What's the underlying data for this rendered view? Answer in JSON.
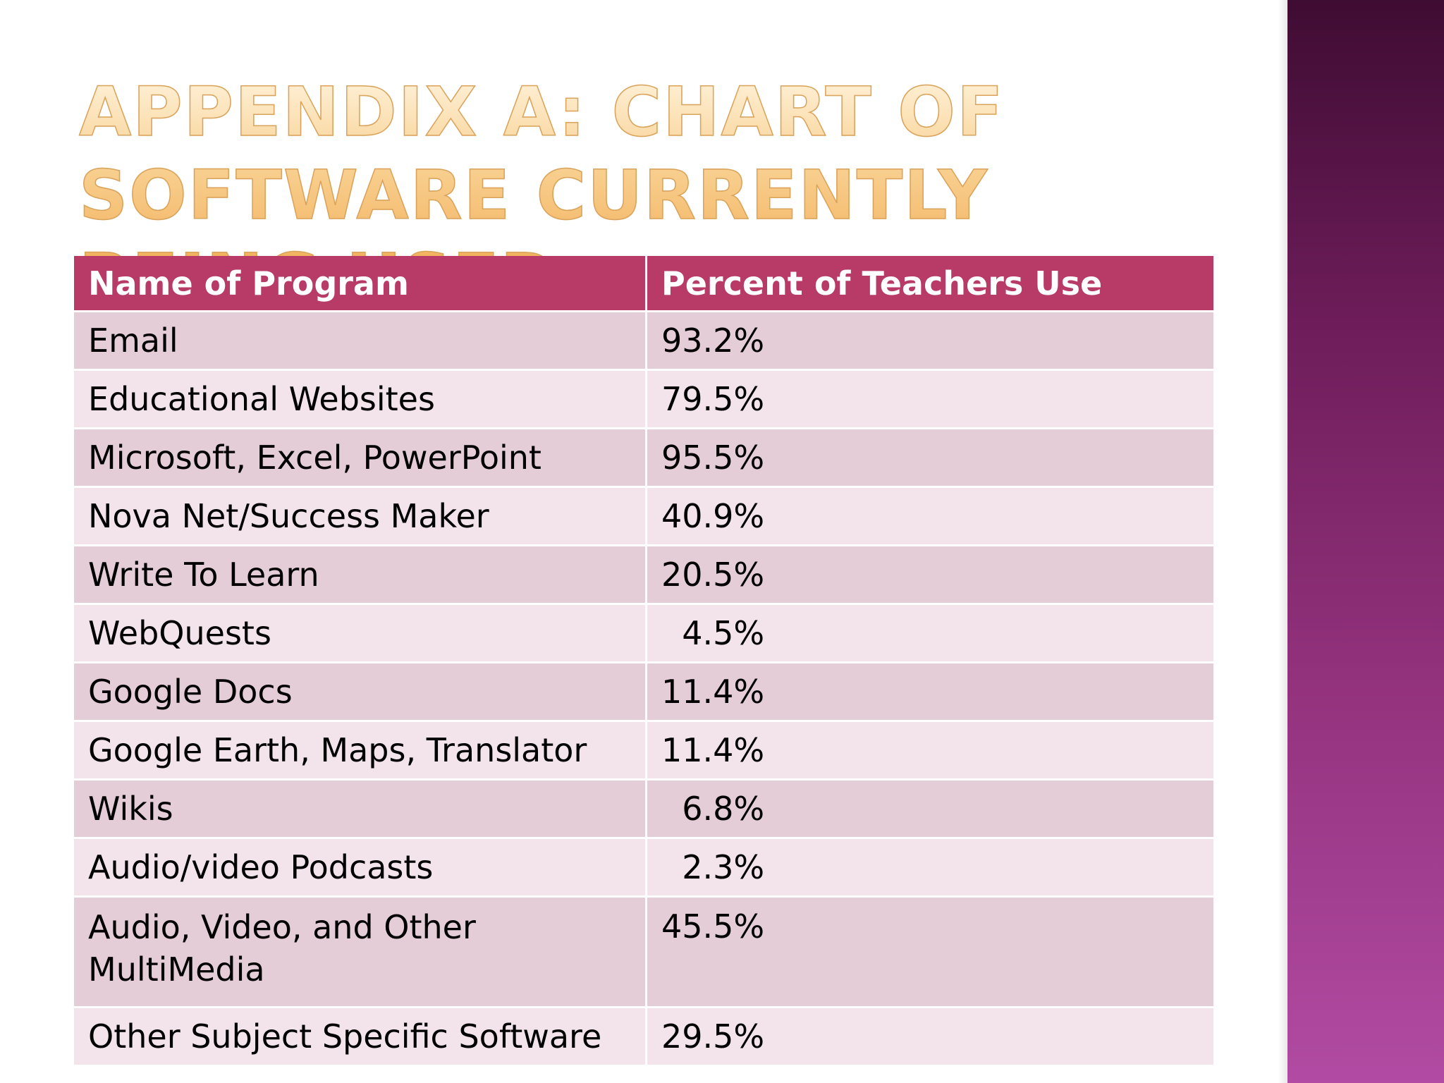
{
  "slide": {
    "title": "Appendix A: Chart of Software Currently Being Used"
  },
  "table": {
    "headers": [
      "Name of Program",
      "Percent of Teachers  Use"
    ],
    "rows": [
      {
        "program": "Email",
        "percent": "93.2%"
      },
      {
        "program": "Educational Websites",
        "percent": "79.5%"
      },
      {
        "program": "Microsoft, Excel, PowerPoint",
        "percent": "95.5%"
      },
      {
        "program": "Nova Net/Success Maker",
        "percent": "40.9%"
      },
      {
        "program": "Write To Learn",
        "percent": "20.5%"
      },
      {
        "program": "WebQuests",
        "percent": "  4.5%"
      },
      {
        "program": "Google Docs",
        "percent": "11.4%"
      },
      {
        "program": "Google Earth, Maps, Translator",
        "percent": "11.4%"
      },
      {
        "program": "Wikis",
        "percent": "  6.8%"
      },
      {
        "program": "Audio/video Podcasts",
        "percent": "  2.3%"
      },
      {
        "program": "Audio, Video, and Other MultiMedia",
        "percent": "45.5%"
      },
      {
        "program": "Other Subject Specific Software",
        "percent": "29.5%"
      }
    ]
  },
  "colors": {
    "header_bg": "#b73b66",
    "row_odd": "#e4cdd6",
    "row_even": "#f2e4ea",
    "title": "#f2ad58",
    "side_band_top": "#3f0c33",
    "side_band_bottom": "#b14ba3"
  }
}
